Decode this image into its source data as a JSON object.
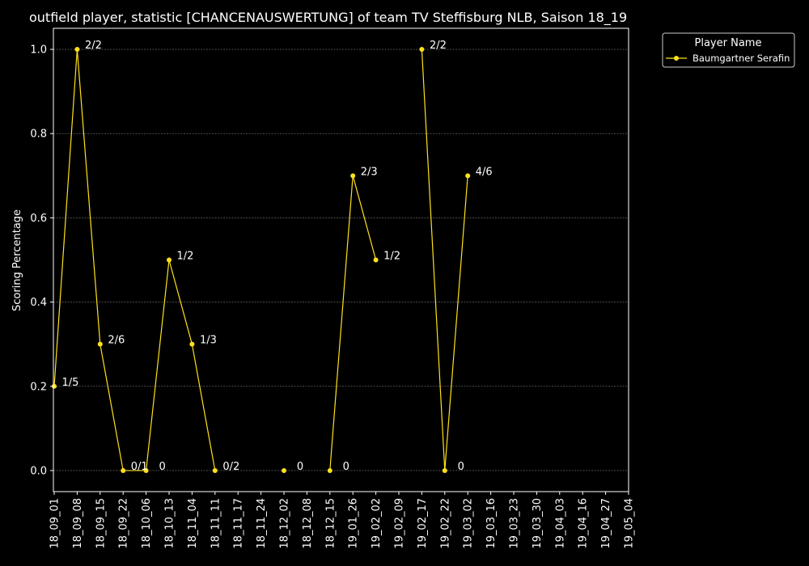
{
  "chart_data": {
    "type": "line",
    "title": "outfield player, statistic [CHANCENAUSWERTUNG] of team TV Steffisburg NLB, Saison 18_19",
    "xlabel": "",
    "ylabel": "Scoring Percentage",
    "ylim": [
      -0.05,
      1.05
    ],
    "yticks": [
      "0.0",
      "0.2",
      "0.4",
      "0.6",
      "0.8",
      "1.0"
    ],
    "ytick_values": [
      0.0,
      0.2,
      0.4,
      0.6,
      0.8,
      1.0
    ],
    "grid": true,
    "x_categories": [
      "18_09_01",
      "18_09_08",
      "18_09_15",
      "18_09_22",
      "18_10_06",
      "18_10_13",
      "18_11_04",
      "18_11_11",
      "18_11_17",
      "18_11_24",
      "18_12_02",
      "18_12_08",
      "18_12_15",
      "19_01_26",
      "19_02_02",
      "19_02_09",
      "19_02_17",
      "19_02_22",
      "19_03_02",
      "19_03_16",
      "19_03_23",
      "19_03_30",
      "19_04_03",
      "19_04_16",
      "19_04_27",
      "19_05_04"
    ],
    "legend": {
      "title": "Player Name",
      "position": "outside-top-right"
    },
    "series": [
      {
        "name": "Baumgartner Serafin",
        "color": "#FFE11A",
        "points": [
          {
            "x": "18_09_01",
            "y": 0.2,
            "label": "1/5"
          },
          {
            "x": "18_09_08",
            "y": 1.0,
            "label": "2/2"
          },
          {
            "x": "18_09_15",
            "y": 0.3,
            "label": "2/6"
          },
          {
            "x": "18_09_22",
            "y": 0.0,
            "label": "0/1"
          },
          {
            "x": "18_10_06",
            "y": 0.0,
            "label": "0"
          },
          {
            "x": "18_10_13",
            "y": 0.5,
            "label": "1/2"
          },
          {
            "x": "18_11_04",
            "y": 0.3,
            "label": "1/3"
          },
          {
            "x": "18_11_11",
            "y": 0.0,
            "label": "0/2"
          },
          {
            "x": "18_12_02",
            "y": 0.0,
            "label": "0"
          },
          {
            "x": "18_12_15",
            "y": 0.0,
            "label": "0"
          },
          {
            "x": "19_01_26",
            "y": 0.7,
            "label": "2/3"
          },
          {
            "x": "19_02_02",
            "y": 0.5,
            "label": "1/2"
          },
          {
            "x": "19_02_17",
            "y": 1.0,
            "label": "2/2"
          },
          {
            "x": "19_02_22",
            "y": 0.0,
            "label": "0"
          },
          {
            "x": "19_03_02",
            "y": 0.7,
            "label": "4/6"
          }
        ]
      }
    ]
  }
}
